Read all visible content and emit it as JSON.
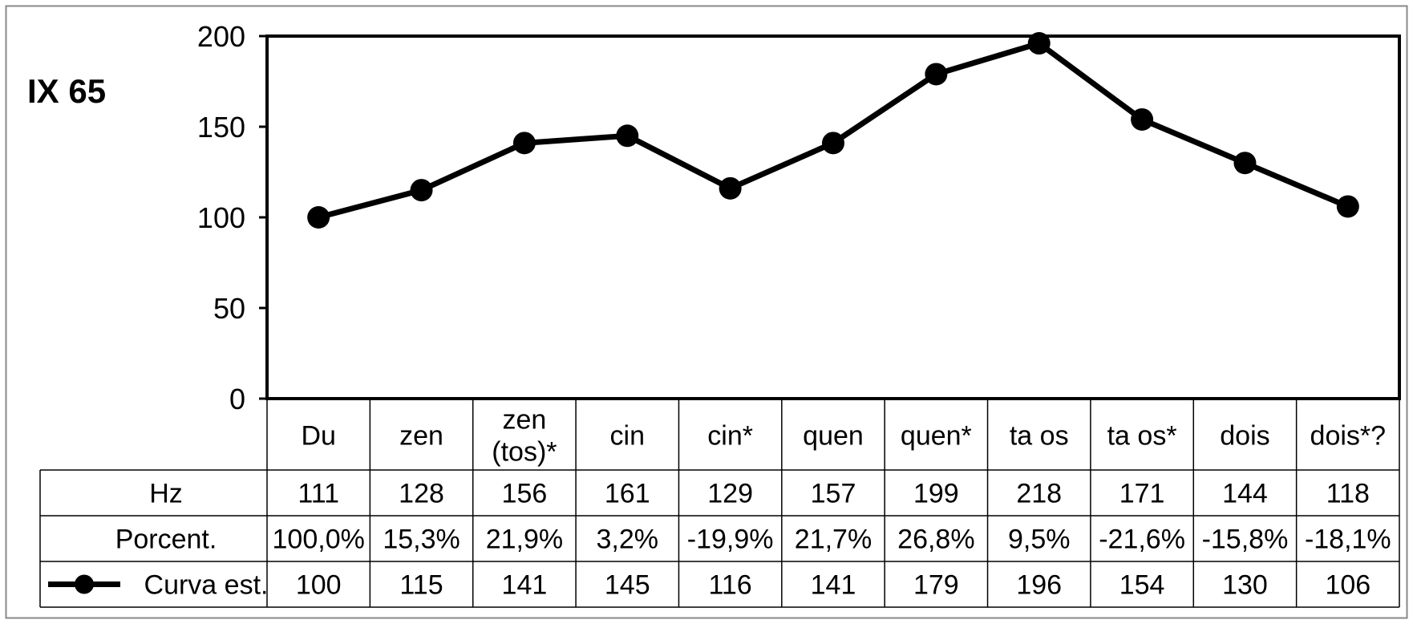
{
  "chart_data": {
    "type": "line",
    "title": "IX 65",
    "categories": [
      [
        "Du"
      ],
      [
        "zen"
      ],
      [
        "zen",
        "(tos)*"
      ],
      [
        "cin"
      ],
      [
        "cin*"
      ],
      [
        "quen"
      ],
      [
        "quen*"
      ],
      [
        "ta os"
      ],
      [
        "ta os*"
      ],
      [
        "dois"
      ],
      [
        "dois*?"
      ]
    ],
    "ylim": [
      0,
      200
    ],
    "yticks": [
      "0",
      "50",
      "100",
      "150",
      "200"
    ],
    "series": [
      {
        "name": "Curva est.",
        "values": [
          100,
          115,
          141,
          145,
          116,
          141,
          179,
          196,
          154,
          130,
          106
        ]
      }
    ],
    "table": {
      "rows": [
        {
          "label": "Hz",
          "cells": [
            "111",
            "128",
            "156",
            "161",
            "129",
            "157",
            "199",
            "218",
            "171",
            "144",
            "118"
          ]
        },
        {
          "label": "Porcent.",
          "cells": [
            "100,0%",
            "15,3%",
            "21,9%",
            "3,2%",
            "-19,9%",
            "21,7%",
            "26,8%",
            "9,5%",
            "-21,6%",
            "-15,8%",
            "-18,1%"
          ]
        },
        {
          "label": "Curva est.",
          "cells": [
            "100",
            "115",
            "141",
            "145",
            "116",
            "141",
            "179",
            "196",
            "154",
            "130",
            "106"
          ],
          "legend": true
        }
      ]
    },
    "colors": {
      "line": "#000000",
      "marker": "#000000"
    }
  }
}
